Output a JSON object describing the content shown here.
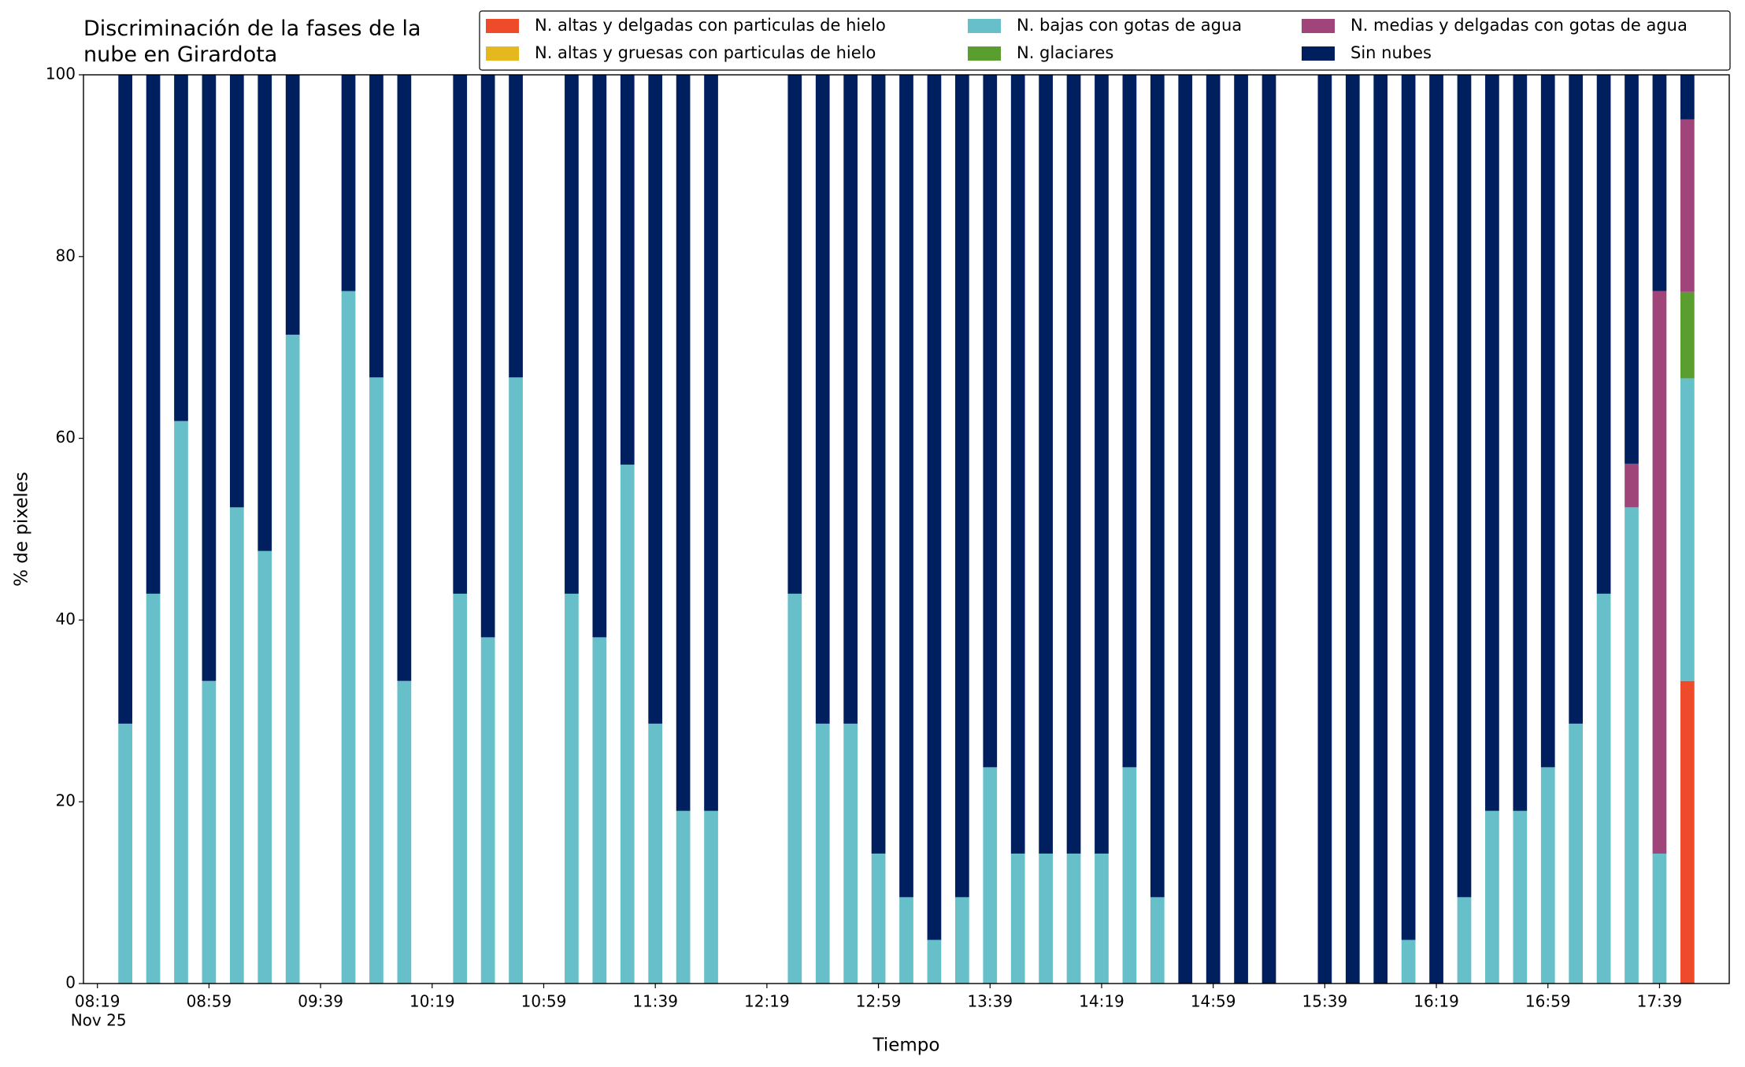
{
  "chart_data": {
    "type": "stacked_bar",
    "title": "Discriminación de la fases de la\nnube en Girardota",
    "xlabel": "Tiempo",
    "ylabel": "% de pixeles",
    "x": [
      "08:29",
      "08:39",
      "08:49",
      "08:59",
      "09:09",
      "09:19",
      "09:29",
      "09:49",
      "09:59",
      "10:09",
      "10:29",
      "10:39",
      "10:49",
      "11:09",
      "11:19",
      "11:29",
      "11:39",
      "11:49",
      "11:59",
      "12:29",
      "12:39",
      "12:49",
      "12:59",
      "13:09",
      "13:19",
      "13:29",
      "13:39",
      "13:49",
      "13:59",
      "14:09",
      "14:19",
      "14:29",
      "14:39",
      "14:49",
      "14:59",
      "15:09",
      "15:19",
      "15:39",
      "15:49",
      "15:59",
      "16:09",
      "16:19",
      "16:29",
      "16:39",
      "16:49",
      "16:59",
      "17:09",
      "17:19",
      "17:29",
      "17:39",
      "17:49"
    ],
    "xlim": [
      "08:14",
      "18:04"
    ],
    "xticks": [
      "08:19",
      "08:59",
      "09:39",
      "10:19",
      "10:59",
      "11:39",
      "12:19",
      "12:59",
      "13:39",
      "14:19",
      "14:59",
      "15:39",
      "16:19",
      "16:59",
      "17:39"
    ],
    "date_label": "Nov 25",
    "ylim": [
      0,
      100
    ],
    "yticks": [
      0,
      20,
      40,
      60,
      80,
      100
    ],
    "legend": "upper right",
    "series": [
      {
        "name": "N. altas y delgadas con particulas de hielo",
        "color": "#ee4b2b",
        "values": [
          0,
          0,
          0,
          0,
          0,
          0,
          0,
          0,
          0,
          0,
          0,
          0,
          0,
          0,
          0,
          0,
          0,
          0,
          0,
          0,
          0,
          0,
          0,
          0,
          0,
          0,
          0,
          0,
          0,
          0,
          0,
          0,
          0,
          0,
          0,
          0,
          0,
          0,
          0,
          0,
          0,
          0,
          0,
          0,
          0,
          0,
          0,
          0,
          0,
          0,
          33.3
        ]
      },
      {
        "name": "N. altas y gruesas con particulas de hielo",
        "color": "#e5b81e",
        "values": [
          0,
          0,
          0,
          0,
          0,
          0,
          0,
          0,
          0,
          0,
          0,
          0,
          0,
          0,
          0,
          0,
          0,
          0,
          0,
          0,
          0,
          0,
          0,
          0,
          0,
          0,
          0,
          0,
          0,
          0,
          0,
          0,
          0,
          0,
          0,
          0,
          0,
          0,
          0,
          0,
          0,
          0,
          0,
          0,
          0,
          0,
          0,
          0,
          0,
          0,
          0
        ]
      },
      {
        "name": "N. bajas con gotas de agua",
        "color": "#66bfc9",
        "values": [
          28.6,
          42.9,
          61.9,
          33.3,
          52.4,
          47.6,
          71.4,
          76.2,
          66.7,
          33.3,
          42.9,
          38.1,
          66.7,
          42.9,
          38.1,
          57.1,
          28.6,
          19.0,
          19.0,
          42.9,
          28.6,
          28.6,
          14.3,
          9.5,
          4.8,
          9.5,
          23.8,
          14.3,
          14.3,
          14.3,
          14.3,
          23.8,
          9.5,
          0,
          0,
          0,
          0,
          0,
          0,
          0,
          4.8,
          0,
          9.5,
          19.0,
          19.0,
          23.8,
          28.6,
          42.9,
          52.4,
          14.3,
          33.3
        ]
      },
      {
        "name": "N. glaciares",
        "color": "#5a9e2f",
        "values": [
          0,
          0,
          0,
          0,
          0,
          0,
          0,
          0,
          0,
          0,
          0,
          0,
          0,
          0,
          0,
          0,
          0,
          0,
          0,
          0,
          0,
          0,
          0,
          0,
          0,
          0,
          0,
          0,
          0,
          0,
          0,
          0,
          0,
          0,
          0,
          0,
          0,
          0,
          0,
          0,
          0,
          0,
          0,
          0,
          0,
          0,
          0,
          0,
          0,
          0,
          9.5
        ]
      },
      {
        "name": "N. medias y delgadas con gotas de agua",
        "color": "#a0457a",
        "values": [
          0,
          0,
          0,
          0,
          0,
          0,
          0,
          0,
          0,
          0,
          0,
          0,
          0,
          0,
          0,
          0,
          0,
          0,
          0,
          0,
          0,
          0,
          0,
          0,
          0,
          0,
          0,
          0,
          0,
          0,
          0,
          0,
          0,
          0,
          0,
          0,
          0,
          0,
          0,
          0,
          0,
          0,
          0,
          0,
          0,
          0,
          0,
          0,
          4.8,
          61.9,
          19.0
        ]
      },
      {
        "name": "Sin nubes",
        "color": "#001f5f",
        "values": [
          71.4,
          57.1,
          38.1,
          66.7,
          47.6,
          52.4,
          28.6,
          23.8,
          33.3,
          66.7,
          57.1,
          61.9,
          33.3,
          57.1,
          61.9,
          42.9,
          71.4,
          81.0,
          81.0,
          57.1,
          71.4,
          71.4,
          85.7,
          90.5,
          95.2,
          90.5,
          76.2,
          85.7,
          85.7,
          85.7,
          85.7,
          76.2,
          90.5,
          100,
          100,
          100,
          100,
          100,
          100,
          100,
          95.2,
          100,
          90.5,
          81.0,
          81.0,
          76.2,
          71.4,
          57.1,
          42.8,
          23.8,
          4.9
        ]
      }
    ]
  }
}
